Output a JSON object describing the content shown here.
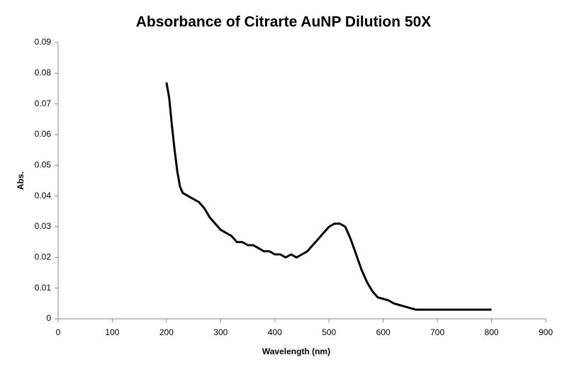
{
  "chart_data": {
    "type": "line",
    "title": "Absorbance of Citrarte AuNP Dilution 50X",
    "x_label": "Wavelength (nm)",
    "y_label": "Abs.",
    "x": [
      200,
      205,
      210,
      215,
      220,
      225,
      230,
      240,
      250,
      260,
      270,
      280,
      290,
      300,
      310,
      320,
      330,
      340,
      350,
      360,
      370,
      380,
      390,
      400,
      410,
      420,
      430,
      440,
      450,
      460,
      470,
      480,
      490,
      500,
      510,
      520,
      530,
      540,
      550,
      560,
      570,
      580,
      590,
      600,
      610,
      620,
      630,
      640,
      650,
      660,
      680,
      700,
      720,
      740,
      760,
      780,
      800
    ],
    "series": [
      {
        "name": "Abs.",
        "color": "#000000",
        "values": [
          0.077,
          0.072,
          0.063,
          0.055,
          0.048,
          0.043,
          0.041,
          0.04,
          0.039,
          0.038,
          0.036,
          0.033,
          0.031,
          0.029,
          0.028,
          0.027,
          0.025,
          0.025,
          0.024,
          0.024,
          0.023,
          0.022,
          0.022,
          0.021,
          0.021,
          0.02,
          0.021,
          0.02,
          0.021,
          0.022,
          0.024,
          0.026,
          0.028,
          0.03,
          0.031,
          0.031,
          0.03,
          0.026,
          0.021,
          0.016,
          0.012,
          0.009,
          0.007,
          0.0065,
          0.006,
          0.005,
          0.0045,
          0.004,
          0.0035,
          0.003,
          0.003,
          0.003,
          0.003,
          0.003,
          0.003,
          0.003,
          0.003
        ]
      }
    ],
    "xlim": [
      0,
      900
    ],
    "xticks": [
      0,
      100,
      200,
      300,
      400,
      500,
      600,
      700,
      800,
      900
    ],
    "ylim": [
      0,
      0.09
    ],
    "yticks": [
      0,
      0.01,
      0.02,
      0.03,
      0.04,
      0.05,
      0.06,
      0.07,
      0.08,
      0.09
    ],
    "grid": false,
    "legend": false
  }
}
